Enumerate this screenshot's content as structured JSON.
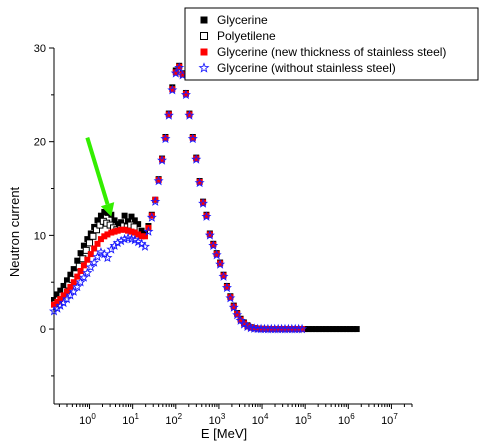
{
  "chart_data": {
    "type": "scatter",
    "title": "",
    "xlabel": "E [MeV]",
    "ylabel": "Neutron current",
    "x_scale": "log",
    "xlim": [
      0.15,
      30000000
    ],
    "ylim": [
      -8,
      30
    ],
    "x_ticks": [
      {
        "value": 1,
        "base": "10",
        "exp": "0"
      },
      {
        "value": 10,
        "base": "10",
        "exp": "1"
      },
      {
        "value": 100,
        "base": "10",
        "exp": "2"
      },
      {
        "value": 1000,
        "base": "10",
        "exp": "3"
      },
      {
        "value": 10000,
        "base": "10",
        "exp": "4"
      },
      {
        "value": 100000,
        "base": "10",
        "exp": "5"
      },
      {
        "value": 1000000,
        "base": "10",
        "exp": "6"
      },
      {
        "value": 10000000,
        "base": "10",
        "exp": "7"
      }
    ],
    "y_ticks": [
      {
        "value": 0,
        "label": "0"
      },
      {
        "value": 10,
        "label": "10"
      },
      {
        "value": 20,
        "label": "20"
      },
      {
        "value": 30,
        "label": "30"
      }
    ],
    "legend_position": "top-right",
    "series": [
      {
        "name": "Glycerine",
        "marker": "filled-square",
        "color": "#000000",
        "x": [
          0.15,
          0.18,
          0.21,
          0.25,
          0.3,
          0.36,
          0.43,
          0.52,
          0.62,
          0.74,
          0.89,
          1.07,
          1.28,
          1.53,
          1.84,
          2.2,
          2.6,
          3.2,
          3.8,
          4.5,
          5.4,
          6.5,
          7.8,
          9.4,
          11.2,
          13.4,
          16.1,
          19.3,
          23.2,
          27.8,
          33.4,
          40,
          48,
          57.6,
          69,
          83,
          100,
          120,
          144,
          172,
          207,
          248,
          298,
          357,
          429,
          514,
          617,
          740,
          888,
          1066,
          1280,
          1535,
          1842,
          2210,
          2652,
          3182,
          3819,
          4582,
          5499,
          6598,
          7918,
          9502,
          11402,
          13683,
          16420,
          19704,
          23645,
          28374,
          34049,
          40858,
          49030,
          58836,
          70603,
          84724,
          101669,
          122000,
          146400,
          175700,
          210800,
          253000,
          303600,
          364300,
          437200,
          524600,
          629500,
          755400,
          906500,
          1087800,
          1305400,
          1566400
        ],
        "y": [
          3.1,
          3.7,
          4.1,
          4.6,
          5.2,
          5.8,
          6.4,
          7.3,
          8.1,
          8.9,
          9.6,
          10.2,
          10.9,
          11.6,
          12.1,
          12.5,
          12.4,
          12.2,
          11.6,
          11.2,
          11.4,
          12.1,
          11.5,
          12.0,
          11.6,
          11.2,
          10.5,
          10.2,
          11.0,
          12.2,
          13.8,
          16.0,
          18.2,
          20.5,
          23.0,
          25.8,
          27.6,
          28.1,
          27.3,
          25.2,
          23.0,
          20.5,
          18.3,
          15.8,
          13.6,
          12.2,
          10.2,
          9.1,
          8.1,
          7.1,
          5.8,
          4.6,
          3.5,
          2.5,
          1.7,
          1.1,
          0.7,
          0.4,
          0.2,
          0.1,
          0.05,
          0.02,
          0.01,
          0.01,
          0,
          0,
          0,
          0,
          0,
          0,
          0,
          0,
          0,
          0,
          0,
          0,
          0,
          0,
          0,
          0,
          0,
          0,
          0,
          0,
          0,
          0,
          0,
          0,
          0,
          0
        ]
      },
      {
        "name": "Polyetilene",
        "marker": "open-square",
        "color": "#000000",
        "x": [
          0.16,
          0.19,
          0.23,
          0.28,
          0.33,
          0.4,
          0.48,
          0.58,
          0.7,
          0.84,
          1.0,
          1.2,
          1.45,
          1.74,
          2.09,
          2.5,
          3.0,
          3.6,
          4.3,
          5.2,
          6.2,
          7.5,
          9.0,
          10.8
        ],
        "y": [
          2.7,
          3.1,
          3.6,
          4.1,
          4.7,
          5.3,
          5.9,
          6.7,
          7.5,
          8.4,
          9.2,
          9.9,
          10.6,
          11.1,
          11.5,
          11.3,
          11.1,
          10.8,
          10.6,
          10.7,
          11.0,
          10.9,
          11.1,
          10.9
        ]
      },
      {
        "name": "Glycerine (new thickness of stainless steel)",
        "marker": "filled-square",
        "color": "#ff0000",
        "x": [
          0.15,
          0.18,
          0.21,
          0.25,
          0.3,
          0.36,
          0.43,
          0.52,
          0.62,
          0.74,
          0.89,
          1.07,
          1.28,
          1.53,
          1.84,
          2.2,
          2.6,
          3.2,
          3.8,
          4.5,
          5.4,
          6.5,
          7.8,
          9.4,
          11.2,
          13.4,
          16.1,
          19.3,
          23.2,
          27.8,
          33.4,
          40,
          48,
          57.6,
          69,
          83,
          100,
          120,
          144,
          172,
          207,
          248,
          298,
          357,
          429,
          514,
          617,
          740,
          888,
          1066,
          1280,
          1535,
          1842,
          2210,
          2652,
          3182,
          3819,
          4582,
          5499,
          6598,
          7918,
          9502,
          11402,
          13683,
          16420,
          19704,
          23645,
          28374,
          34049,
          40858,
          49030,
          58836,
          70603,
          84724
        ],
        "y": [
          2.6,
          2.9,
          3.2,
          3.6,
          4.0,
          4.5,
          5.0,
          5.6,
          6.2,
          6.8,
          7.4,
          8.0,
          8.6,
          9.1,
          9.6,
          9.9,
          10.1,
          10.3,
          10.4,
          10.5,
          10.6,
          10.6,
          10.5,
          10.4,
          10.3,
          10.1,
          9.9,
          9.9,
          10.8,
          12.1,
          13.8,
          15.9,
          18.1,
          20.4,
          22.9,
          25.6,
          27.4,
          28.0,
          27.2,
          25.1,
          22.9,
          20.4,
          18.2,
          15.7,
          13.5,
          12.1,
          10.1,
          9.0,
          8.0,
          7.0,
          5.7,
          4.5,
          3.4,
          2.4,
          1.6,
          1.0,
          0.6,
          0.3,
          0.15,
          0.08,
          0.04,
          0.02,
          0.01,
          0,
          0,
          0,
          0,
          0,
          0,
          0,
          0,
          0,
          0,
          0
        ]
      },
      {
        "name": "Glycerine (without stainless steel)",
        "marker": "open-star",
        "color": "#1a1aff",
        "x": [
          0.15,
          0.18,
          0.21,
          0.25,
          0.3,
          0.36,
          0.43,
          0.52,
          0.62,
          0.74,
          0.89,
          1.07,
          1.28,
          1.53,
          1.84,
          2.2,
          2.6,
          3.2,
          3.8,
          4.5,
          5.4,
          6.5,
          7.8,
          9.4,
          11.2,
          13.4,
          16.1,
          19.3,
          23.2,
          27.8,
          33.4,
          40,
          48,
          57.6,
          69,
          83,
          100,
          120,
          144,
          172,
          207,
          248,
          298,
          357,
          429,
          514,
          617,
          740,
          888,
          1066,
          1280,
          1535,
          1842,
          2210,
          2652,
          3182,
          3819,
          4582,
          5499,
          6598,
          7918,
          9502,
          11402,
          13683,
          16420,
          19704,
          23645,
          28374,
          34049,
          40858,
          49030,
          58836,
          70603,
          84724
        ],
        "y": [
          1.9,
          2.2,
          2.5,
          2.8,
          3.2,
          3.6,
          4.0,
          4.5,
          5.0,
          5.5,
          6.0,
          6.6,
          7.1,
          7.7,
          8.2,
          8.0,
          7.6,
          8.5,
          8.9,
          9.2,
          9.4,
          9.6,
          9.7,
          9.6,
          9.5,
          9.3,
          9.1,
          8.8,
          10.4,
          11.9,
          13.6,
          15.8,
          18.0,
          20.3,
          22.8,
          25.5,
          27.3,
          27.9,
          27.1,
          25.0,
          22.8,
          20.3,
          18.1,
          15.6,
          13.4,
          12.0,
          10.0,
          8.9,
          7.9,
          6.9,
          5.6,
          4.4,
          3.3,
          2.3,
          1.5,
          0.9,
          0.5,
          0.25,
          0.12,
          0.05,
          0.02,
          0.01,
          0,
          0,
          0,
          0,
          0,
          0,
          0,
          0,
          0,
          0,
          0,
          0
        ]
      }
    ],
    "annotation": {
      "type": "arrow",
      "color": "#33ee00",
      "points_to": {
        "x": 3.2,
        "y": 12.0
      }
    }
  }
}
